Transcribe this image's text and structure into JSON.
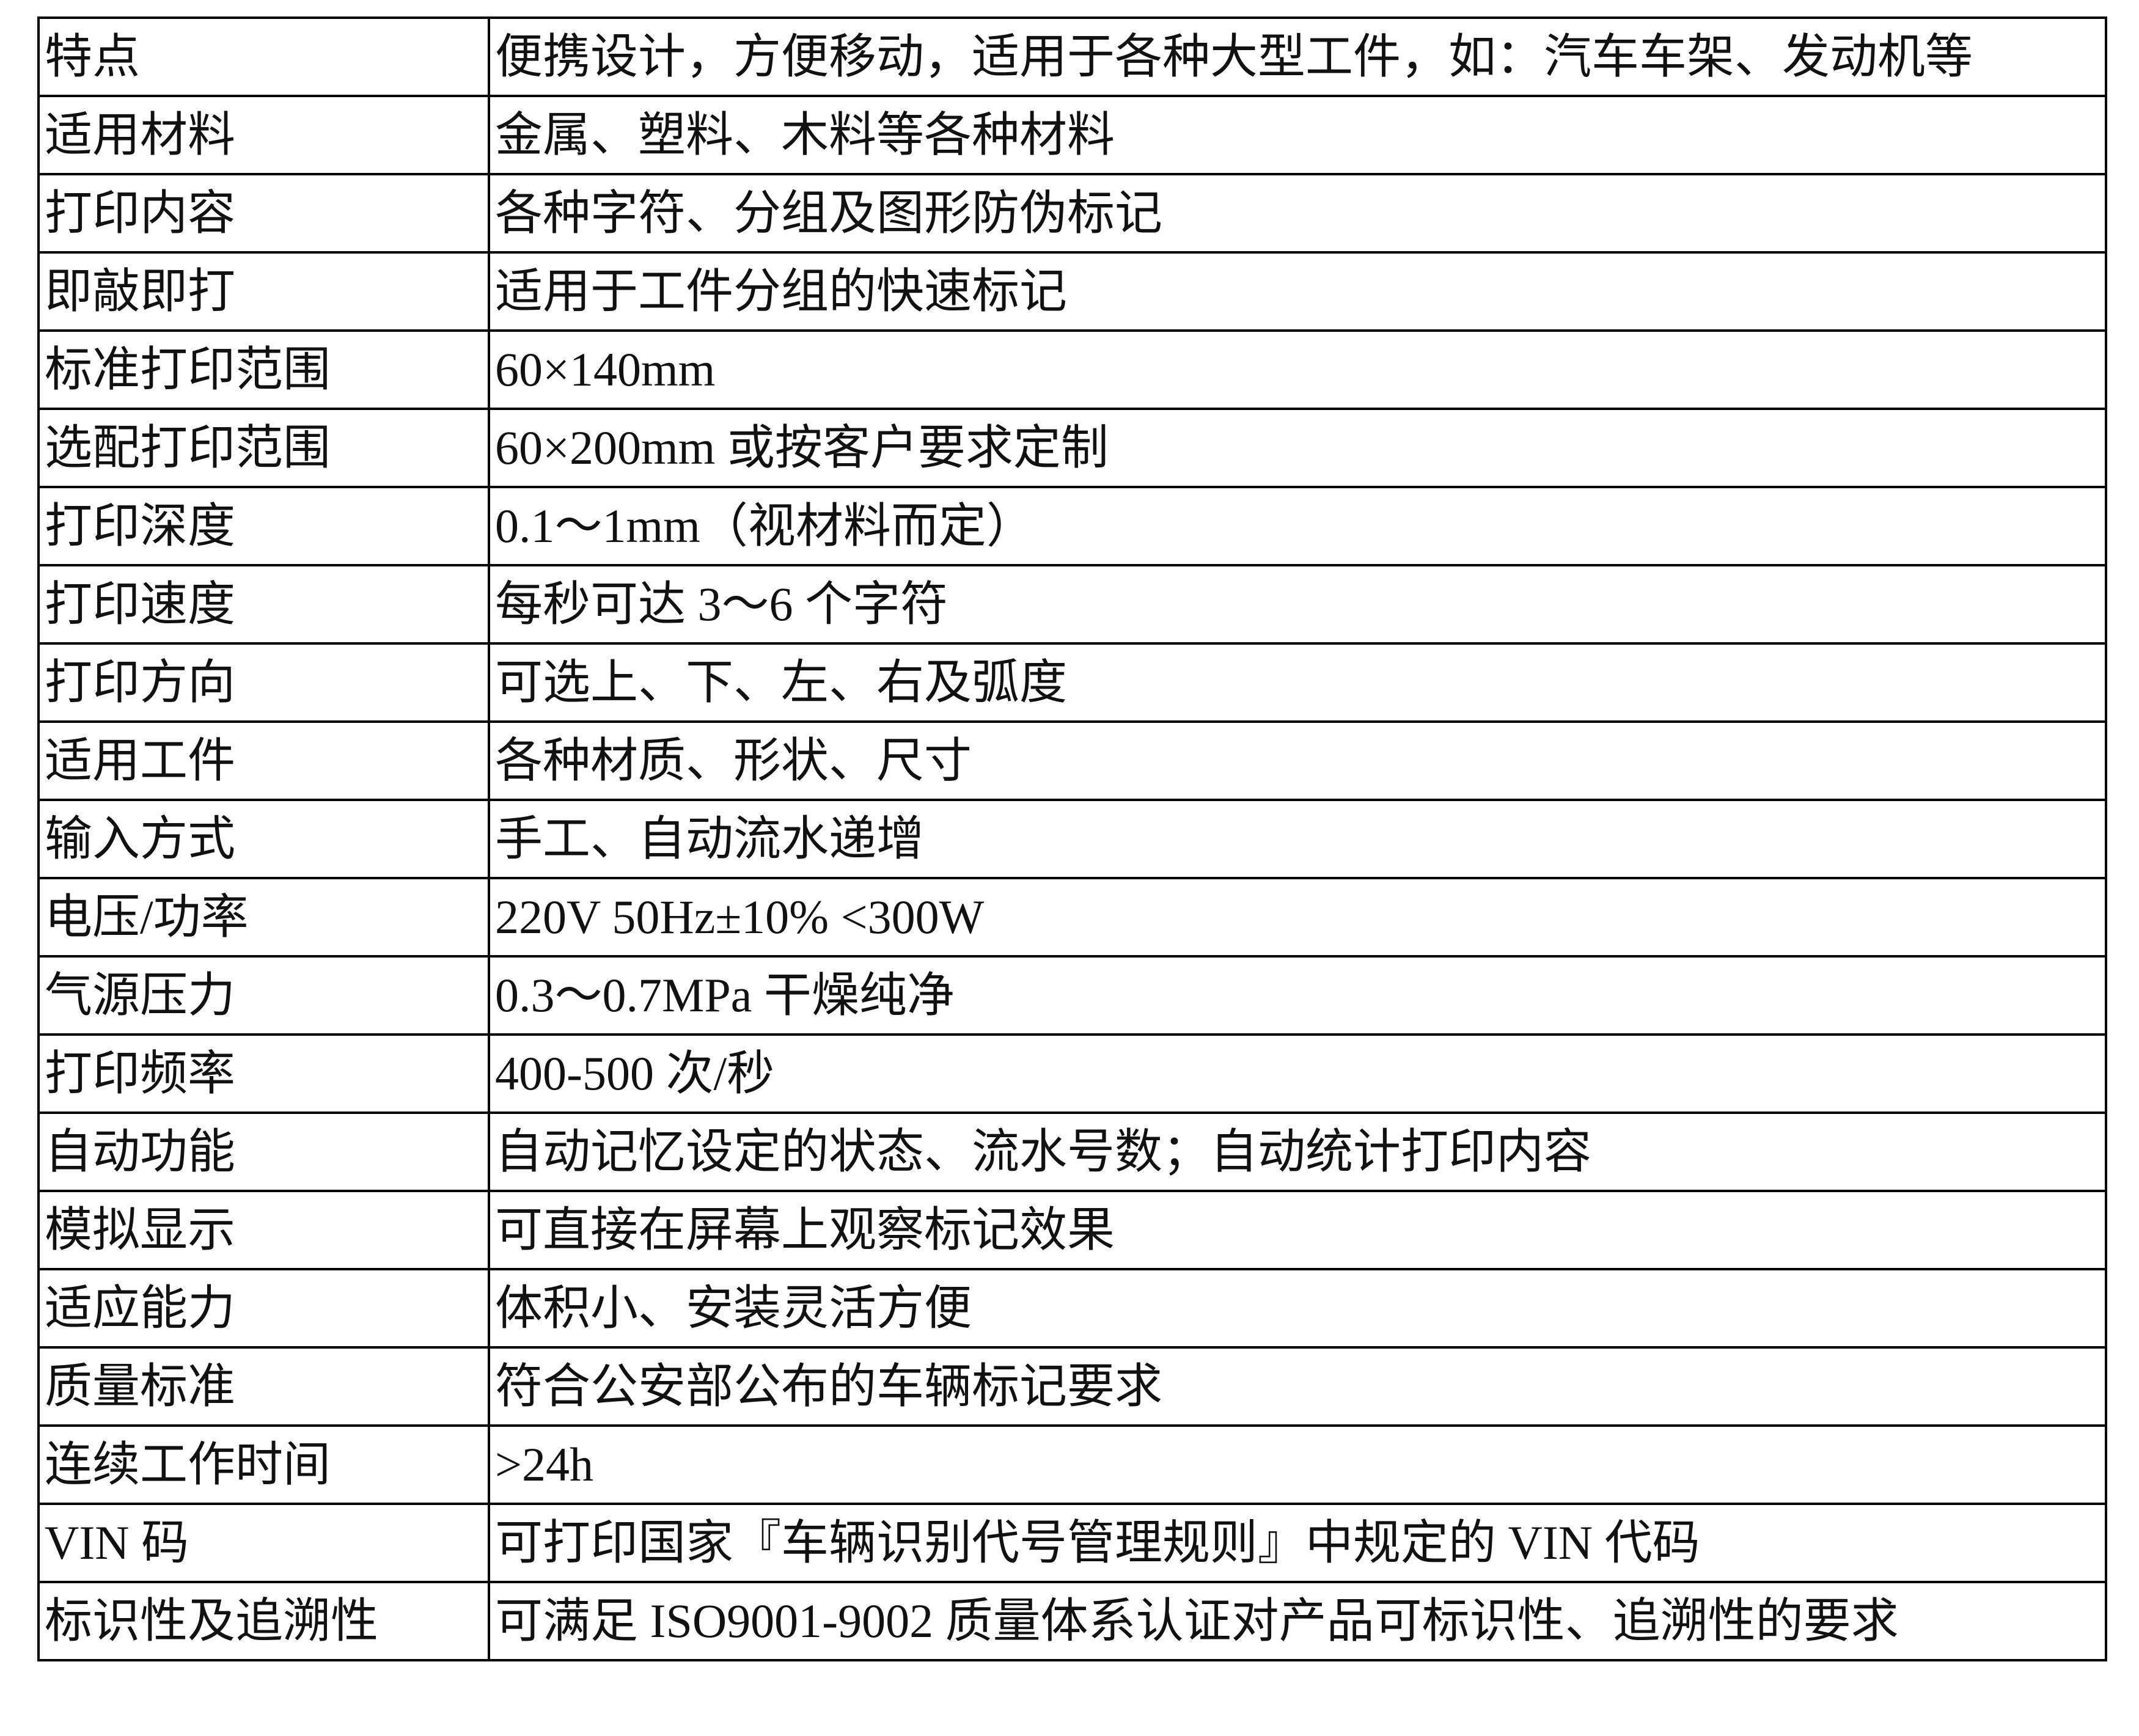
{
  "table": {
    "rows": [
      [
        "特点",
        "便携设计，方便移动，适用于各种大型工件，如：汽车车架、发动机等"
      ],
      [
        "适用材料",
        "金属、塑料、木料等各种材料"
      ],
      [
        "打印内容",
        "各种字符、分组及图形防伪标记"
      ],
      [
        "即敲即打",
        "适用于工件分组的快速标记"
      ],
      [
        "标准打印范围",
        "60×140mm"
      ],
      [
        "选配打印范围",
        "60×200mm 或按客户要求定制"
      ],
      [
        "打印深度",
        "0.1～1mm（视材料而定）"
      ],
      [
        "打印速度",
        "每秒可达 3～6 个字符"
      ],
      [
        "打印方向",
        "可选上、下、左、右及弧度"
      ],
      [
        "适用工件",
        "各种材质、形状、尺寸"
      ],
      [
        "输入方式",
        "手工、自动流水递增"
      ],
      [
        "电压/功率",
        "220V 50Hz±10% <300W"
      ],
      [
        "气源压力",
        "0.3～0.7MPa 干燥纯净"
      ],
      [
        "打印频率",
        "400-500 次/秒"
      ],
      [
        "自动功能",
        "自动记忆设定的状态、流水号数；自动统计打印内容"
      ],
      [
        "模拟显示",
        "可直接在屏幕上观察标记效果"
      ],
      [
        "适应能力",
        "体积小、安装灵活方便"
      ],
      [
        "质量标准",
        "符合公安部公布的车辆标记要求"
      ],
      [
        "连续工作时间",
        ">24h"
      ],
      [
        "VIN 码",
        "可打印国家『车辆识别代号管理规则』中规定的 VIN 代码"
      ],
      [
        "标识性及追溯性",
        "可满足 ISO9001-9002 质量体系认证对产品可标识性、追溯性的要求"
      ]
    ]
  }
}
